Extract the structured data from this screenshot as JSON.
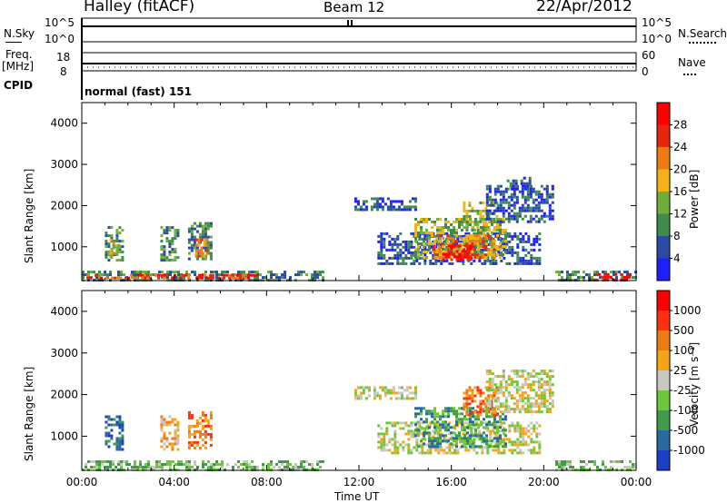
{
  "header": {
    "station": "Halley (fitACF)",
    "beam": "Beam 12",
    "date": "22/Apr/2012"
  },
  "strip_panels": {
    "nsky_label": "N.Sky",
    "nsky_ticks": [
      "10^5",
      "10^0"
    ],
    "nsearch_label": "N.Search",
    "nsearch_ticks": [
      "10^5",
      "10^0"
    ],
    "freq_label": "Freq.",
    "freq_unit": "[MHz]",
    "freq_ticks": [
      "18",
      "8"
    ],
    "nave_label": "Nave",
    "nave_ticks": [
      "60",
      "0"
    ],
    "cpid_label": "CPID",
    "cpid_value": "normal (fast) 151"
  },
  "chart_data": [
    {
      "type": "heatmap",
      "panel": "power",
      "ylabel": "Slant Range [km]",
      "yticks": [
        1000,
        2000,
        3000,
        4000
      ],
      "ylim": [
        180,
        4500
      ],
      "xlabel": "Time UT",
      "xticks": [
        "00:00",
        "04:00",
        "08:00",
        "12:00",
        "16:00",
        "20:00",
        "00:00"
      ],
      "xlim_hours": [
        0,
        24
      ],
      "colorbar": {
        "label": "Power [dB]",
        "ticks": [
          "4",
          "8",
          "12",
          "16",
          "20",
          "24",
          "28"
        ],
        "colors": [
          "#1e1eff",
          "#2a4aa6",
          "#3f8a4d",
          "#6fae3b",
          "#f2b316",
          "#f07a12",
          "#e8250f",
          "#ff0000"
        ]
      },
      "regions": [
        {
          "t0": 0.0,
          "t1": 10.5,
          "r0": 200,
          "r1": 420,
          "level": 2
        },
        {
          "t0": 0.2,
          "t1": 7.6,
          "r0": 220,
          "r1": 340,
          "level": 6
        },
        {
          "t0": 1.0,
          "t1": 1.8,
          "r0": 650,
          "r1": 1500,
          "level": 2
        },
        {
          "t0": 1.2,
          "t1": 1.6,
          "r0": 800,
          "r1": 1200,
          "level": 4
        },
        {
          "t0": 3.4,
          "t1": 4.2,
          "r0": 650,
          "r1": 1500,
          "level": 2
        },
        {
          "t0": 4.6,
          "t1": 5.6,
          "r0": 700,
          "r1": 1600,
          "level": 2
        },
        {
          "t0": 4.9,
          "t1": 5.4,
          "r0": 800,
          "r1": 1200,
          "level": 5
        },
        {
          "t0": 12.8,
          "t1": 19.8,
          "r0": 600,
          "r1": 1350,
          "level": 1
        },
        {
          "t0": 14.4,
          "t1": 18.4,
          "r0": 750,
          "r1": 1700,
          "level": 3
        },
        {
          "t0": 15.2,
          "t1": 17.9,
          "r0": 750,
          "r1": 1300,
          "level": 5
        },
        {
          "t0": 15.6,
          "t1": 16.8,
          "r0": 700,
          "r1": 1050,
          "level": 7
        },
        {
          "t0": 16.5,
          "t1": 18.0,
          "r0": 1400,
          "r1": 2100,
          "level": 3
        },
        {
          "t0": 17.5,
          "t1": 20.4,
          "r0": 1600,
          "r1": 2500,
          "level": 1
        },
        {
          "t0": 18.4,
          "t1": 19.4,
          "r0": 2400,
          "r1": 2700,
          "level": 1
        },
        {
          "t0": 11.8,
          "t1": 14.5,
          "r0": 1900,
          "r1": 2200,
          "level": 1
        },
        {
          "t0": 20.5,
          "t1": 24.0,
          "r0": 190,
          "r1": 420,
          "level": 2
        },
        {
          "t0": 22.0,
          "t1": 23.7,
          "r0": 210,
          "r1": 360,
          "level": 7
        }
      ]
    },
    {
      "type": "heatmap",
      "panel": "velocity",
      "ylabel": "Slant Range [km]",
      "yticks": [
        1000,
        2000,
        3000,
        4000
      ],
      "ylim": [
        180,
        4500
      ],
      "xlabel": "Time UT",
      "xticks": [
        "00:00",
        "04:00",
        "08:00",
        "12:00",
        "16:00",
        "20:00",
        "00:00"
      ],
      "xlim_hours": [
        0,
        24
      ],
      "colorbar": {
        "label": "Velocity [m s⁻¹]",
        "ticks": [
          "1000",
          "500",
          "100",
          "25",
          "-25",
          "-100",
          "-500",
          "-1000"
        ],
        "colors": [
          "#1a3fc8",
          "#2a6aa0",
          "#3f9a4a",
          "#6cc83a",
          "#c8c8c0",
          "#f5a417",
          "#f07a12",
          "#ff2f10",
          "#ff0000"
        ]
      },
      "regions": [
        {
          "t0": 0.0,
          "t1": 10.5,
          "r0": 200,
          "r1": 420,
          "level": 3
        },
        {
          "t0": 1.0,
          "t1": 1.8,
          "r0": 650,
          "r1": 1500,
          "level": 1
        },
        {
          "t0": 3.4,
          "t1": 4.2,
          "r0": 650,
          "r1": 1500,
          "level": 5
        },
        {
          "t0": 4.6,
          "t1": 5.6,
          "r0": 700,
          "r1": 1600,
          "level": 6
        },
        {
          "t0": 12.8,
          "t1": 19.8,
          "r0": 600,
          "r1": 1350,
          "level": 4
        },
        {
          "t0": 14.4,
          "t1": 18.4,
          "r0": 750,
          "r1": 1700,
          "level": 2
        },
        {
          "t0": 16.5,
          "t1": 18.0,
          "r0": 1500,
          "r1": 2200,
          "level": 6
        },
        {
          "t0": 17.5,
          "t1": 20.4,
          "r0": 1600,
          "r1": 2600,
          "level": 4
        },
        {
          "t0": 11.8,
          "t1": 14.5,
          "r0": 1900,
          "r1": 2200,
          "level": 4
        },
        {
          "t0": 20.5,
          "t1": 24.0,
          "r0": 190,
          "r1": 420,
          "level": 3
        }
      ]
    }
  ]
}
